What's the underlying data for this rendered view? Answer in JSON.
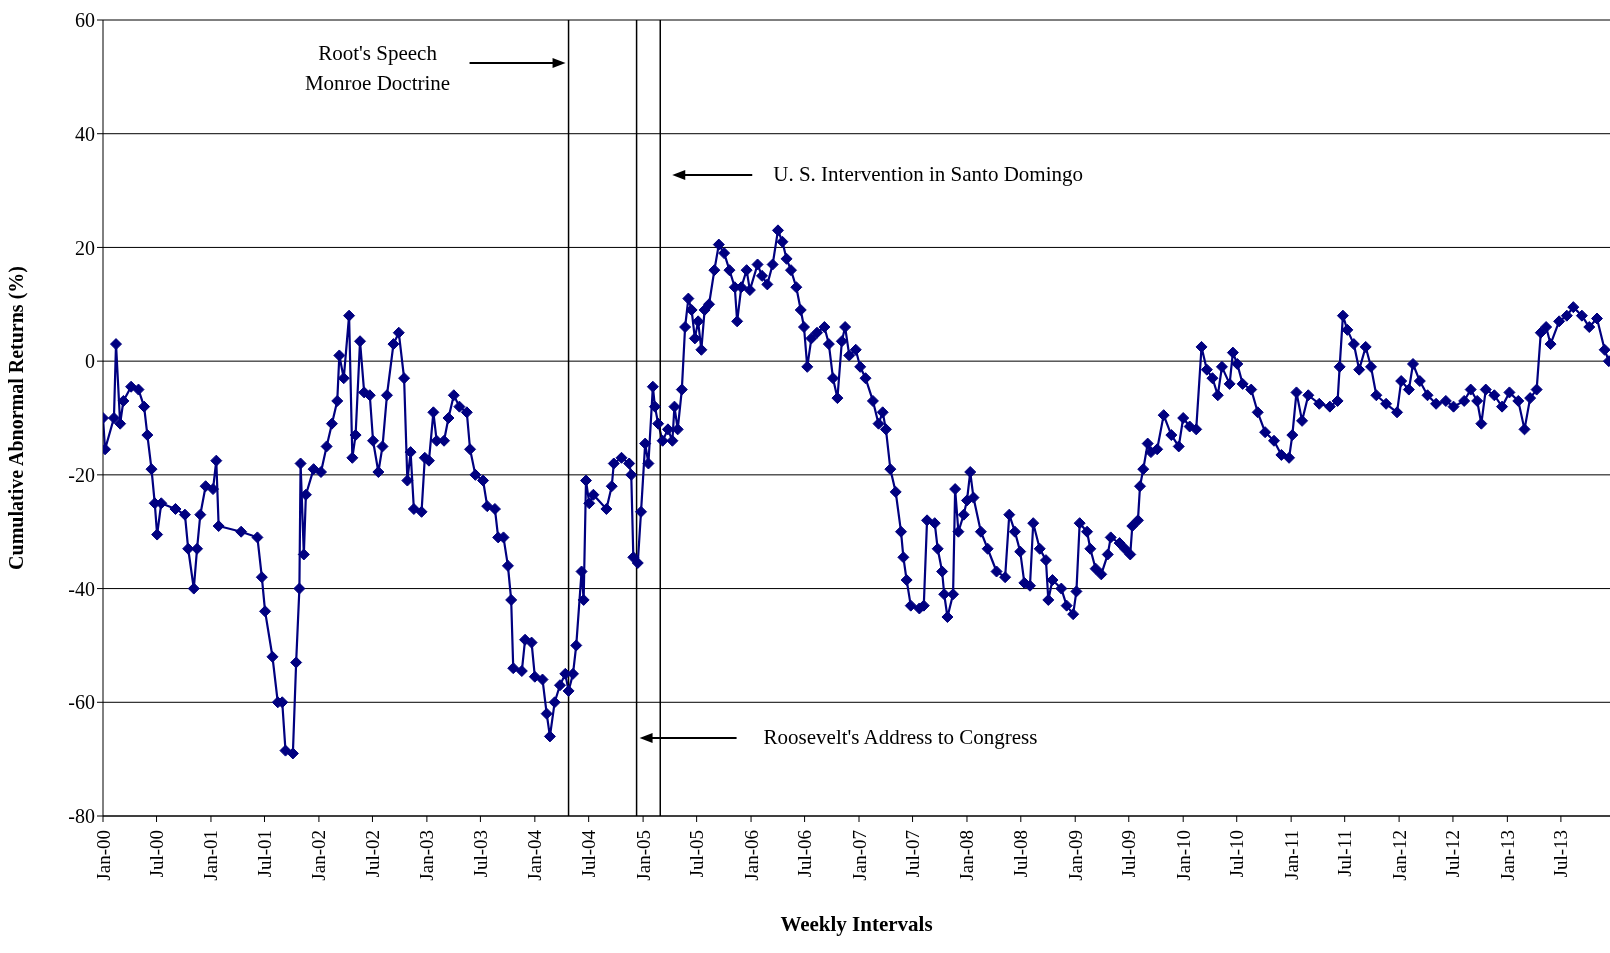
{
  "chart_data": {
    "type": "line",
    "xlabel": "Weekly Intervals",
    "ylabel": "Cumulative Abnormal Returns (%)",
    "x": [
      "1900-01-01",
      "1900-01-08",
      "1900-02-07",
      "1900-02-14",
      "1900-02-28",
      "1900-03-11",
      "1900-04-06",
      "1900-05-01",
      "1900-05-20",
      "1900-05-31",
      "1900-06-14",
      "1900-06-25",
      "1900-07-03",
      "1900-07-17",
      "1900-09-03",
      "1900-10-05",
      "1900-10-16",
      "1900-11-04",
      "1900-11-15",
      "1900-11-26",
      "1900-12-14",
      "1901-01-08",
      "1901-01-19",
      "1901-01-27",
      "1901-04-13",
      "1901-06-07",
      "1901-06-22",
      "1901-07-03",
      "1901-07-28",
      "1901-08-15",
      "1901-08-30",
      "1901-09-10",
      "1901-10-05",
      "1901-10-16",
      "1901-10-27",
      "1901-10-31",
      "1901-11-11",
      "1901-11-18",
      "1901-12-14",
      "1902-01-08",
      "1902-01-27",
      "1902-02-14",
      "1902-03-04",
      "1902-03-11",
      "1902-03-26",
      "1902-04-13",
      "1902-04-24",
      "1902-05-05",
      "1902-05-20",
      "1902-06-03",
      "1902-06-22",
      "1902-07-03",
      "1902-07-21",
      "1902-08-04",
      "1902-08-19",
      "1902-09-10",
      "1902-09-28",
      "1902-10-16",
      "1902-10-27",
      "1902-11-07",
      "1902-11-18",
      "1902-12-14",
      "1902-12-25",
      "1903-01-08",
      "1903-01-23",
      "1903-02-03",
      "1903-02-28",
      "1903-03-15",
      "1903-04-02",
      "1903-04-21",
      "1903-05-16",
      "1903-05-27",
      "1903-06-14",
      "1903-07-10",
      "1903-07-24",
      "1903-08-19",
      "1903-08-30",
      "1903-09-17",
      "1903-10-02",
      "1903-10-13",
      "1903-10-20",
      "1903-11-18",
      "1903-11-29",
      "1903-12-21",
      "1904-01-01",
      "1904-01-27",
      "1904-02-10",
      "1904-02-21",
      "1904-03-08",
      "1904-03-26",
      "1904-04-13",
      "1904-04-24",
      "1904-05-09",
      "1904-05-20",
      "1904-06-07",
      "1904-06-14",
      "1904-06-22",
      "1904-07-03",
      "1904-07-17",
      "1904-08-30",
      "1904-09-17",
      "1904-09-24",
      "1904-10-20",
      "1904-11-15",
      "1904-11-22",
      "1904-11-29",
      "1904-12-14",
      "1904-12-25",
      "1905-01-08",
      "1905-01-19",
      "1905-02-03",
      "1905-02-10",
      "1905-02-21",
      "1905-03-08",
      "1905-03-26",
      "1905-04-10",
      "1905-04-17",
      "1905-04-28",
      "1905-05-12",
      "1905-05-23",
      "1905-06-03",
      "1905-06-14",
      "1905-06-25",
      "1905-07-06",
      "1905-07-17",
      "1905-07-28",
      "1905-08-12",
      "1905-08-30",
      "1905-09-14",
      "1905-10-02",
      "1905-10-20",
      "1905-11-07",
      "1905-11-15",
      "1905-11-29",
      "1905-12-17",
      "1905-12-28",
      "1906-01-23",
      "1906-02-07",
      "1906-02-25",
      "1906-03-15",
      "1906-04-02",
      "1906-04-17",
      "1906-05-01",
      "1906-05-16",
      "1906-06-03",
      "1906-06-18",
      "1906-06-29",
      "1906-07-10",
      "1906-07-24",
      "1906-08-12",
      "1906-09-06",
      "1906-09-21",
      "1906-10-05",
      "1906-10-20",
      "1906-11-04",
      "1906-11-15",
      "1906-11-29",
      "1906-12-21",
      "1907-01-05",
      "1907-01-23",
      "1907-02-17",
      "1907-03-08",
      "1907-03-22",
      "1907-04-02",
      "1907-04-17",
      "1907-05-05",
      "1907-05-23",
      "1907-05-31",
      "1907-06-11",
      "1907-06-25",
      "1907-07-24",
      "1907-08-08",
      "1907-08-19",
      "1907-09-14",
      "1907-09-24",
      "1907-10-09",
      "1907-10-16",
      "1907-10-27",
      "1907-11-15",
      "1907-11-22",
      "1907-12-03",
      "1907-12-21",
      "1908-01-01",
      "1908-01-12",
      "1908-01-23",
      "1908-02-17",
      "1908-03-11",
      "1908-04-10",
      "1908-05-09",
      "1908-05-23",
      "1908-06-11",
      "1908-06-29",
      "1908-07-13",
      "1908-08-01",
      "1908-08-12",
      "1908-09-03",
      "1908-09-24",
      "1908-10-02",
      "1908-10-16",
      "1908-11-15",
      "1908-12-03",
      "1908-12-25",
      "1909-01-05",
      "1909-01-16",
      "1909-02-10",
      "1909-02-21",
      "1909-03-11",
      "1909-03-30",
      "1909-04-21",
      "1909-05-01",
      "1909-05-31",
      "1909-06-18",
      "1909-07-06",
      "1909-07-13",
      "1909-08-01",
      "1909-08-08",
      "1909-08-19",
      "1909-09-03",
      "1909-09-14",
      "1909-10-05",
      "1909-10-27",
      "1909-11-22",
      "1909-12-17",
      "1910-01-01",
      "1910-01-23",
      "1910-02-14",
      "1910-03-04",
      "1910-03-22",
      "1910-04-10",
      "1910-04-28",
      "1910-05-12",
      "1910-06-07",
      "1910-06-18",
      "1910-07-03",
      "1910-07-21",
      "1910-08-19",
      "1910-09-10",
      "1910-10-05",
      "1910-11-04",
      "1910-11-29",
      "1910-12-25",
      "1911-01-05",
      "1911-01-19",
      "1911-02-07",
      "1911-02-28",
      "1911-04-06",
      "1911-05-12",
      "1911-06-07",
      "1911-06-14",
      "1911-06-25",
      "1911-07-10",
      "1911-08-01",
      "1911-08-19",
      "1911-09-10",
      "1911-09-28",
      "1911-10-16",
      "1911-11-18",
      "1911-12-25",
      "1912-01-08",
      "1912-02-03",
      "1912-02-17",
      "1912-03-11",
      "1912-04-06",
      "1912-05-05",
      "1912-06-07",
      "1912-07-03",
      "1912-08-08",
      "1912-08-30",
      "1912-09-21",
      "1912-10-05",
      "1912-10-20",
      "1912-11-18",
      "1912-12-14",
      "1913-01-08",
      "1913-02-07",
      "1913-02-28",
      "1913-03-19",
      "1913-04-10",
      "1913-04-24",
      "1913-05-12",
      "1913-05-27",
      "1913-06-25",
      "1913-07-21",
      "1913-08-12",
      "1913-09-10",
      "1913-10-05",
      "1913-10-31",
      "1913-11-26",
      "1913-12-10"
    ],
    "series": [
      {
        "color": "#000080",
        "values": [
          -10,
          -15.5,
          -10,
          3,
          -11,
          -7,
          -4.5,
          -5,
          -8,
          -13,
          -19,
          -25,
          -30.5,
          -25,
          -26,
          -27,
          -33,
          -40,
          -33,
          -27,
          -22,
          -22.5,
          -17.5,
          -29,
          -30,
          -31,
          -38,
          -44,
          -52,
          -60,
          -60,
          -68.5,
          -69,
          -53,
          -40,
          -18,
          -34,
          -23.5,
          -19,
          -19.5,
          -15,
          -11,
          -7,
          1,
          -3,
          8,
          -17,
          -13,
          3.5,
          -5.5,
          -6,
          -14,
          -19.5,
          -15,
          -6,
          3,
          5,
          -3,
          -21,
          -16,
          -26,
          -26.5,
          -17,
          -17.5,
          -9,
          -14,
          -14,
          -10,
          -6,
          -8,
          -9,
          -15.5,
          -20,
          -21,
          -25.5,
          -26,
          -31,
          -31,
          -36,
          -42,
          -54,
          -54.5,
          -49,
          -49.5,
          -55.5,
          -56,
          -62,
          -66,
          -60,
          -57,
          -55,
          -58,
          -55,
          -50,
          -37,
          -42,
          -21,
          -25,
          -23.5,
          -26,
          -22,
          -18,
          -17,
          -18,
          -20,
          -34.5,
          -35.5,
          -26.5,
          -14.5,
          -18,
          -4.5,
          -8,
          -11,
          -14,
          -12,
          -14,
          -8,
          -12,
          -5,
          6,
          11,
          9,
          4,
          7,
          2,
          9,
          10,
          16,
          20.5,
          19,
          16,
          13,
          7,
          13,
          16,
          12.5,
          17,
          15,
          13.5,
          17,
          23,
          21,
          18,
          16,
          13,
          9,
          6,
          -1,
          4,
          5,
          6,
          3,
          -3,
          -6.5,
          3.5,
          6,
          1,
          2,
          -1,
          -3,
          -7,
          -11,
          -9,
          -12,
          -19,
          -23,
          -30,
          -34.5,
          -38.5,
          -43,
          -43.5,
          -43,
          -28,
          -28.5,
          -33,
          -37,
          -41,
          -45,
          -41,
          -22.5,
          -30,
          -27,
          -24.5,
          -19.5,
          -24,
          -30,
          -33,
          -37,
          -38,
          -27,
          -30,
          -33.5,
          -39,
          -39.5,
          -28.5,
          -33,
          -35,
          -42,
          -38.5,
          -40,
          -43,
          -44.5,
          -40.5,
          -28.5,
          -30,
          -33,
          -36.5,
          -37.5,
          -34,
          -31,
          -32,
          -33,
          -34,
          -29,
          -28,
          -22,
          -19,
          -14.5,
          -16,
          -15.5,
          -9.5,
          -13,
          -15,
          -10,
          -11.5,
          -12,
          2.5,
          -1.5,
          -3,
          -6,
          -1,
          -4,
          1.5,
          -0.5,
          -4,
          -5,
          -9,
          -12.5,
          -14,
          -16.5,
          -17,
          -13,
          -5.5,
          -10.5,
          -6,
          -7.5,
          -8,
          -7,
          -1,
          8,
          5.5,
          3,
          -1.5,
          2.5,
          -1,
          -6,
          -7.5,
          -9,
          -3.5,
          -5,
          -0.5,
          -3.5,
          -6,
          -7.5,
          -7,
          -8,
          -7,
          -5,
          -7,
          -11,
          -5,
          -6,
          -8,
          -5.5,
          -7,
          -12,
          -6.5,
          -5,
          5,
          6,
          3,
          7,
          8,
          9.5,
          8,
          6,
          7.5,
          2,
          0
        ]
      }
    ],
    "xlim": [
      "1900-01-01",
      "1913-12-14"
    ],
    "xticks": [
      {
        "value": "1900-01-01",
        "label": "Jan-00"
      },
      {
        "value": "1900-07-01",
        "label": "Jul-00"
      },
      {
        "value": "1901-01-01",
        "label": "Jan-01"
      },
      {
        "value": "1901-07-01",
        "label": "Jul-01"
      },
      {
        "value": "1902-01-01",
        "label": "Jan-02"
      },
      {
        "value": "1902-07-01",
        "label": "Jul-02"
      },
      {
        "value": "1903-01-01",
        "label": "Jan-03"
      },
      {
        "value": "1903-07-01",
        "label": "Jul-03"
      },
      {
        "value": "1904-01-01",
        "label": "Jan-04"
      },
      {
        "value": "1904-07-01",
        "label": "Jul-04"
      },
      {
        "value": "1905-01-01",
        "label": "Jan-05"
      },
      {
        "value": "1905-07-01",
        "label": "Jul-05"
      },
      {
        "value": "1906-01-01",
        "label": "Jan-06"
      },
      {
        "value": "1906-07-01",
        "label": "Jul-06"
      },
      {
        "value": "1907-01-01",
        "label": "Jan-07"
      },
      {
        "value": "1907-07-01",
        "label": "Jul-07"
      },
      {
        "value": "1908-01-01",
        "label": "Jan-08"
      },
      {
        "value": "1908-07-01",
        "label": "Jul-08"
      },
      {
        "value": "1909-01-01",
        "label": "Jan-09"
      },
      {
        "value": "1909-07-01",
        "label": "Jul-09"
      },
      {
        "value": "1910-01-01",
        "label": "Jan-10"
      },
      {
        "value": "1910-07-01",
        "label": "Jul-10"
      },
      {
        "value": "1911-01-01",
        "label": "Jan-11"
      },
      {
        "value": "1911-07-01",
        "label": "Jul-11"
      },
      {
        "value": "1912-01-01",
        "label": "Jan-12"
      },
      {
        "value": "1912-07-01",
        "label": "Jul-12"
      },
      {
        "value": "1913-01-01",
        "label": "Jan-13"
      },
      {
        "value": "1913-07-01",
        "label": "Jul-13"
      }
    ],
    "ylim": [
      -80,
      60
    ],
    "yticks": [
      -80,
      -60,
      -40,
      -20,
      0,
      20,
      40,
      60
    ],
    "grid": "y",
    "marker": "diamond",
    "legend": false,
    "ref_lines": [
      {
        "axis": "x",
        "value": "1904-04-24",
        "color": "#000000"
      },
      {
        "axis": "x",
        "value": "1904-12-10",
        "color": "#000000"
      },
      {
        "axis": "x",
        "value": "1905-02-28",
        "color": "#000000"
      }
    ],
    "annotations": [
      "Root's Speech\nMonroe Doctrine",
      "Roosevelt's Address to Congress",
      "U. S. Intervention in Santo Domingo"
    ]
  }
}
